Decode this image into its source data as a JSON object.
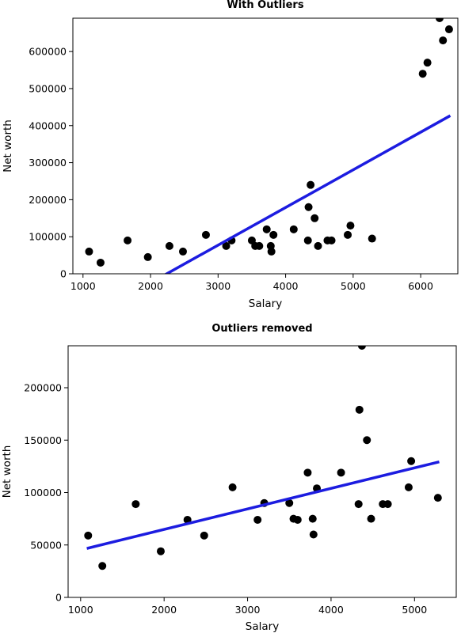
{
  "chart_data": [
    {
      "type": "scatter",
      "title": "With Outliers",
      "xlabel": "Salary",
      "ylabel": "Net worth",
      "xlim": [
        850,
        6550
      ],
      "ylim": [
        0,
        690000
      ],
      "xticks": [
        1000,
        2000,
        3000,
        4000,
        5000,
        6000
      ],
      "yticks": [
        0,
        100000,
        200000,
        300000,
        400000,
        500000,
        600000
      ],
      "grid": false,
      "marker_color": "#000000",
      "line_color": "#1c1ce0",
      "points": [
        [
          1090,
          60000
        ],
        [
          1260,
          30000
        ],
        [
          1660,
          90000
        ],
        [
          1960,
          45000
        ],
        [
          2280,
          75000
        ],
        [
          2480,
          60000
        ],
        [
          2820,
          105000
        ],
        [
          3120,
          75000
        ],
        [
          3200,
          90000
        ],
        [
          3500,
          90000
        ],
        [
          3550,
          75000
        ],
        [
          3610,
          75000
        ],
        [
          3720,
          120000
        ],
        [
          3780,
          75000
        ],
        [
          3790,
          60000
        ],
        [
          3820,
          105000
        ],
        [
          4120,
          120000
        ],
        [
          4330,
          90000
        ],
        [
          4340,
          180000
        ],
        [
          4370,
          240000
        ],
        [
          4430,
          150000
        ],
        [
          4480,
          75000
        ],
        [
          4620,
          90000
        ],
        [
          4680,
          90000
        ],
        [
          4920,
          105000
        ],
        [
          4960,
          130000
        ],
        [
          5280,
          95000
        ],
        [
          6030,
          540000
        ],
        [
          6100,
          570000
        ],
        [
          6280,
          690000
        ],
        [
          6330,
          630000
        ],
        [
          6420,
          660000
        ]
      ],
      "fit_line": [
        [
          2240,
          0
        ],
        [
          6420,
          425000
        ]
      ]
    },
    {
      "type": "scatter",
      "title": "Outliers removed",
      "xlabel": "Salary",
      "ylabel": "Net worth",
      "xlim": [
        850,
        5500
      ],
      "ylim": [
        0,
        240000
      ],
      "xticks": [
        1000,
        2000,
        3000,
        4000,
        5000
      ],
      "yticks": [
        0,
        50000,
        100000,
        150000,
        200000
      ],
      "grid": false,
      "marker_color": "#000000",
      "line_color": "#1c1ce0",
      "points": [
        [
          1090,
          59000
        ],
        [
          1260,
          30000
        ],
        [
          1660,
          89000
        ],
        [
          1960,
          44000
        ],
        [
          2280,
          74000
        ],
        [
          2480,
          59000
        ],
        [
          2820,
          105000
        ],
        [
          3120,
          74000
        ],
        [
          3200,
          90000
        ],
        [
          3500,
          90000
        ],
        [
          3550,
          75000
        ],
        [
          3600,
          74000
        ],
        [
          3720,
          119000
        ],
        [
          3780,
          75000
        ],
        [
          3790,
          60000
        ],
        [
          3830,
          104000
        ],
        [
          4120,
          119000
        ],
        [
          4330,
          89000
        ],
        [
          4340,
          179000
        ],
        [
          4370,
          240000
        ],
        [
          4430,
          150000
        ],
        [
          4480,
          75000
        ],
        [
          4620,
          89000
        ],
        [
          4680,
          89000
        ],
        [
          4930,
          105000
        ],
        [
          4960,
          130000
        ],
        [
          5280,
          95000
        ]
      ],
      "fit_line": [
        [
          1090,
          47000
        ],
        [
          5280,
          129000
        ]
      ]
    }
  ]
}
